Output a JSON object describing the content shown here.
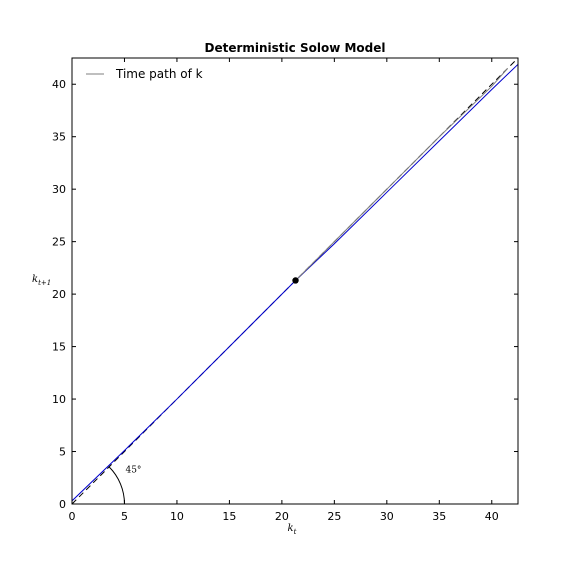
{
  "chart_data": {
    "type": "line",
    "title": "Deterministic Solow Model",
    "xlabel": "k_t",
    "ylabel": "k_{t+1}",
    "xlim": [
      0,
      42.5
    ],
    "ylim": [
      0,
      42.5
    ],
    "xticks": [
      0,
      5,
      10,
      15,
      20,
      25,
      30,
      35,
      40
    ],
    "yticks": [
      0,
      5,
      10,
      15,
      20,
      25,
      30,
      35,
      40
    ],
    "grid": false,
    "legend": {
      "position": "top-left",
      "entries": [
        "Time path of k"
      ]
    },
    "series": [
      {
        "name": "",
        "role": "45-degree line",
        "style": "dashed",
        "color": "#000000",
        "x": [
          0,
          42.5
        ],
        "y": [
          0,
          42.5
        ]
      },
      {
        "name": "",
        "role": "law of motion",
        "style": "solid",
        "color": "#0000cc",
        "x": [
          0,
          5,
          10,
          15,
          21.3,
          25,
          30,
          35,
          40,
          42.5
        ],
        "y": [
          0.3,
          5.1,
          10.0,
          15.0,
          21.3,
          24.8,
          29.7,
          34.6,
          39.5,
          41.9
        ]
      },
      {
        "name": "Time path of k",
        "role": "time path",
        "style": "solid",
        "color": "#7f7f7f",
        "x": [
          21.3,
          25,
          30,
          35,
          40,
          41.5
        ],
        "y": [
          21.3,
          25.0,
          30.0,
          35.0,
          39.8,
          41.5
        ]
      }
    ],
    "points": [
      {
        "label": "steady state",
        "x": 21.3,
        "y": 21.3,
        "color": "#000000"
      }
    ],
    "annotations": [
      {
        "text": "45°",
        "x": 5.0,
        "y": 3.0
      }
    ]
  }
}
